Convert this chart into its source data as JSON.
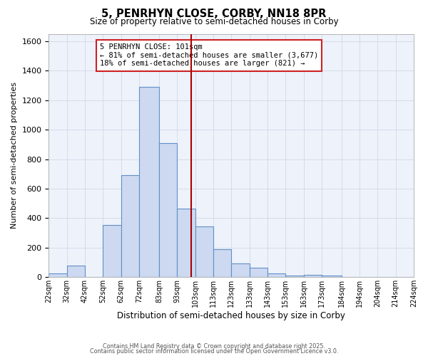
{
  "title": "5, PENRHYN CLOSE, CORBY, NN18 8PR",
  "subtitle": "Size of property relative to semi-detached houses in Corby",
  "xlabel": "Distribution of semi-detached houses by size in Corby",
  "ylabel": "Number of semi-detached properties",
  "bin_labels": [
    "22sqm",
    "32sqm",
    "42sqm",
    "52sqm",
    "62sqm",
    "72sqm",
    "83sqm",
    "93sqm",
    "103sqm",
    "113sqm",
    "123sqm",
    "133sqm",
    "143sqm",
    "153sqm",
    "163sqm",
    "173sqm",
    "184sqm",
    "194sqm",
    "204sqm",
    "214sqm",
    "224sqm"
  ],
  "bin_edges": [
    22,
    32,
    42,
    52,
    62,
    72,
    83,
    93,
    103,
    113,
    123,
    133,
    143,
    153,
    163,
    173,
    184,
    194,
    204,
    214,
    224
  ],
  "bar_heights": [
    25,
    80,
    0,
    355,
    690,
    1290,
    910,
    465,
    345,
    190,
    95,
    65,
    25,
    10,
    15,
    10,
    0,
    0,
    0,
    0
  ],
  "bar_face_color": "#ccd9f0",
  "bar_edge_color": "#6090c8",
  "vline_x": 101,
  "vline_color": "#aa0000",
  "ylim": [
    0,
    1650
  ],
  "yticks": [
    0,
    200,
    400,
    600,
    800,
    1000,
    1200,
    1400,
    1600
  ],
  "annotation_title": "5 PENRHYN CLOSE: 101sqm",
  "annotation_line1": "← 81% of semi-detached houses are smaller (3,677)",
  "annotation_line2": "18% of semi-detached houses are larger (821) →",
  "grid_color": "#d0d8e8",
  "bg_color": "#eef2fa",
  "footnote1": "Contains HM Land Registry data © Crown copyright and database right 2025.",
  "footnote2": "Contains public sector information licensed under the Open Government Licence v3.0."
}
